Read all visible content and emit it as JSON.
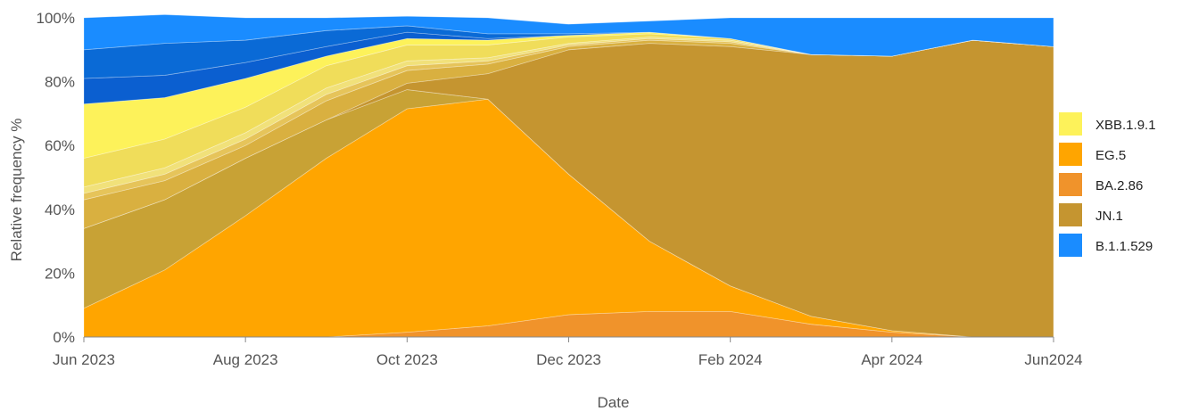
{
  "chart_data": {
    "type": "area",
    "stacked": true,
    "normalized": true,
    "title": "",
    "xlabel": "Date",
    "ylabel": "Relative frequency %",
    "x": [
      "2023-06",
      "2023-07",
      "2023-08",
      "2023-09",
      "2023-10",
      "2023-11",
      "2023-12",
      "2024-01",
      "2024-02",
      "2024-03",
      "2024-04",
      "2024-05",
      "2024-06"
    ],
    "x_ticks": [
      "Jun 2023",
      "Aug 2023",
      "Oct 2023",
      "Dec 2023",
      "Feb 2024",
      "Apr 2024",
      "Jun2024"
    ],
    "y_ticks": [
      "0%",
      "20%",
      "40%",
      "60%",
      "80%",
      "100%"
    ],
    "ylim": [
      0,
      100
    ],
    "grid": false,
    "legend_position": "right",
    "series": [
      {
        "name": "BA.2.86",
        "color": "#f0932b",
        "values": [
          0,
          0,
          0,
          0,
          1.5,
          3.5,
          7,
          8,
          8,
          4,
          1.5,
          0,
          0
        ]
      },
      {
        "name": "EG.5",
        "color": "#ffa500",
        "values": [
          9,
          21,
          38,
          56,
          70,
          71,
          44,
          22,
          8,
          2.5,
          0.5,
          0,
          0
        ]
      },
      {
        "name": "",
        "color": "#c8a235",
        "values": [
          25,
          22,
          18,
          12,
          6,
          0,
          0,
          0,
          0,
          0,
          0,
          0,
          0
        ]
      },
      {
        "name": "JN.1",
        "color": "#c59530",
        "values": [
          0,
          0,
          0,
          0,
          2,
          8,
          39,
          62,
          75,
          82,
          86,
          93,
          91
        ]
      },
      {
        "name": "",
        "color": "#d9b040",
        "values": [
          9,
          6,
          4,
          6,
          4,
          3,
          1,
          1,
          1,
          0,
          0,
          0,
          0
        ]
      },
      {
        "name": "",
        "color": "#e6c45a",
        "values": [
          2,
          2,
          2,
          2,
          1.5,
          1,
          0.5,
          0.5,
          0.5,
          0,
          0,
          0,
          0
        ]
      },
      {
        "name": "",
        "color": "#f1e17a",
        "values": [
          2,
          2,
          2,
          2,
          1.5,
          1,
          0.5,
          0.5,
          0.5,
          0,
          0,
          0,
          0
        ]
      },
      {
        "name": "",
        "color": "#f0dd5a",
        "values": [
          9,
          9,
          8,
          7,
          5,
          4,
          2,
          1,
          0.5,
          0,
          0,
          0,
          0
        ]
      },
      {
        "name": "XBB.1.9.1",
        "color": "#fdf25a",
        "values": [
          17,
          13,
          9,
          3,
          2,
          1.5,
          0.5,
          0.5,
          0,
          0,
          0,
          0,
          0
        ]
      },
      {
        "name": "",
        "color": "#0b5fd0",
        "values": [
          8,
          7,
          5,
          3,
          2,
          0.5,
          0,
          0,
          0,
          0,
          0,
          0,
          0
        ]
      },
      {
        "name": "",
        "color": "#0a6ad6",
        "values": [
          9,
          10,
          7,
          5,
          2,
          1.5,
          0.5,
          0,
          0,
          0,
          0,
          0,
          0
        ]
      },
      {
        "name": "B.1.1.529",
        "color": "#1a8cff",
        "values": [
          10,
          9,
          7,
          4,
          3,
          5,
          3,
          3.5,
          6.5,
          11.5,
          12,
          7,
          9
        ]
      }
    ]
  },
  "legend": [
    {
      "label": "XBB.1.9.1",
      "color": "#fdf25a"
    },
    {
      "label": "EG.5",
      "color": "#ffa500"
    },
    {
      "label": "BA.2.86",
      "color": "#f0932b"
    },
    {
      "label": "JN.1",
      "color": "#c59530"
    },
    {
      "label": "B.1.1.529",
      "color": "#1a8cff"
    }
  ]
}
